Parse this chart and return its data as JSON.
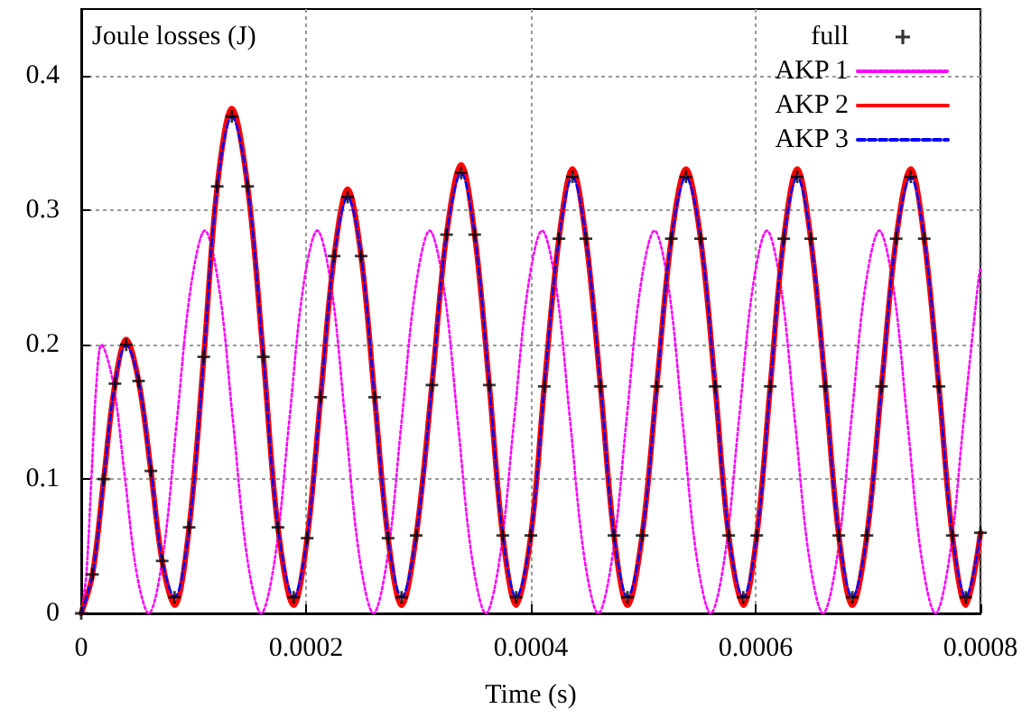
{
  "chart_data": {
    "type": "line",
    "ylabel": "Joule losses (J)",
    "xlabel": "Time (s)",
    "xlim": [
      0,
      0.0008
    ],
    "xticks": [
      0,
      0.0002,
      0.0004,
      0.0006,
      0.0008
    ],
    "ylim": [
      0,
      0.45
    ],
    "yticks": [
      0,
      0.1,
      0.2,
      0.3,
      0.4
    ],
    "grid": true,
    "legend": "top right",
    "x": [
      0,
      1e-05,
      2e-05,
      3e-05,
      4e-05,
      5.1e-05,
      6.2e-05,
      7.2e-05,
      8.3e-05,
      9.6e-05,
      0.000109,
      0.000121,
      0.000134,
      0.000148,
      0.000162,
      0.000175,
      0.000189,
      0.000201,
      0.000213,
      0.000225,
      0.000237,
      0.000249,
      0.000261,
      0.000273,
      0.000285,
      0.000298,
      0.000312,
      0.000325,
      0.000338,
      0.00035,
      0.000363,
      0.000375,
      0.000387,
      0.0004,
      0.000412,
      0.000425,
      0.000437,
      0.000449,
      0.000462,
      0.000474,
      0.000486,
      0.000499,
      0.000512,
      0.000525,
      0.000538,
      0.000551,
      0.000564,
      0.000576,
      0.000589,
      0.000601,
      0.000613,
      0.000625,
      0.000637,
      0.000649,
      0.000662,
      0.000674,
      0.000686,
      0.000699,
      0.000712,
      0.000725,
      0.000738,
      0.00075,
      0.000763,
      0.000775,
      0.000787,
      0.0008
    ],
    "series": [
      {
        "name": "full",
        "type": "scatter",
        "marker": "cross",
        "color": "#000000",
        "values": [
          0,
          0.029,
          0.1,
          0.171,
          0.2,
          0.173,
          0.106,
          0.039,
          0.012,
          0.064,
          0.191,
          0.318,
          0.37,
          0.318,
          0.191,
          0.064,
          0.012,
          0.056,
          0.161,
          0.266,
          0.31,
          0.266,
          0.161,
          0.056,
          0.012,
          0.058,
          0.17,
          0.282,
          0.328,
          0.282,
          0.17,
          0.058,
          0.012,
          0.058,
          0.169,
          0.279,
          0.325,
          0.279,
          0.169,
          0.058,
          0.012,
          0.058,
          0.169,
          0.279,
          0.325,
          0.279,
          0.169,
          0.058,
          0.012,
          0.058,
          0.169,
          0.279,
          0.325,
          0.279,
          0.169,
          0.058,
          0.012,
          0.058,
          0.169,
          0.279,
          0.325,
          0.279,
          0.169,
          0.058,
          0.012,
          0.06
        ]
      },
      {
        "name": "AKP 1",
        "line_style": "dotted",
        "color": "#ff00ff",
        "x": [
          0,
          4.5e-06,
          9e-06,
          1.35e-05,
          1.8e-05,
          2.85e-05,
          3.9e-05,
          4.95e-05,
          6e-05,
          7.25e-05,
          8.5e-05,
          9.75e-05,
          0.00011,
          0.0001225,
          0.000135,
          0.0001475,
          0.00016,
          0.0001725,
          0.000185,
          0.0001975,
          0.00021,
          0.0002225,
          0.000235,
          0.0002475,
          0.00026,
          0.0002725,
          0.000285,
          0.0002975,
          0.00031,
          0.0003225,
          0.000335,
          0.0003475,
          0.00036,
          0.0003725,
          0.000385,
          0.0003975,
          0.00041,
          0.0004225,
          0.000435,
          0.0004475,
          0.00046,
          0.0004725,
          0.000485,
          0.0004975,
          0.00051,
          0.0005225,
          0.000535,
          0.0005475,
          0.00056,
          0.0005725,
          0.000585,
          0.0005975,
          0.00061,
          0.0006225,
          0.000635,
          0.0006475,
          0.00066,
          0.0006725,
          0.000685,
          0.0006975,
          0.00071,
          0.0007225,
          0.000735,
          0.0007475,
          0.00076,
          0.0007725,
          0.000785,
          0.0007975,
          0.0008
        ],
        "values": [
          0,
          0.029,
          0.1,
          0.171,
          0.2,
          0.171,
          0.1,
          0.029,
          0,
          0.042,
          0.143,
          0.243,
          0.285,
          0.243,
          0.143,
          0.042,
          0,
          0.042,
          0.143,
          0.243,
          0.285,
          0.243,
          0.143,
          0.042,
          0,
          0.042,
          0.143,
          0.243,
          0.285,
          0.243,
          0.143,
          0.042,
          0,
          0.042,
          0.143,
          0.243,
          0.285,
          0.243,
          0.143,
          0.042,
          0,
          0.042,
          0.143,
          0.243,
          0.285,
          0.243,
          0.143,
          0.042,
          0,
          0.042,
          0.143,
          0.243,
          0.285,
          0.243,
          0.143,
          0.042,
          0,
          0.042,
          0.143,
          0.243,
          0.285,
          0.243,
          0.143,
          0.042,
          0,
          0.042,
          0.143,
          0.243,
          0.258
        ]
      },
      {
        "name": "AKP 2",
        "line_style": "solid",
        "color": "#ff0000",
        "values": [
          0,
          0.029,
          0.1,
          0.171,
          0.204,
          0.173,
          0.106,
          0.039,
          0.006,
          0.064,
          0.191,
          0.318,
          0.376,
          0.318,
          0.191,
          0.064,
          0.006,
          0.056,
          0.161,
          0.266,
          0.316,
          0.266,
          0.161,
          0.056,
          0.006,
          0.058,
          0.17,
          0.282,
          0.334,
          0.282,
          0.17,
          0.058,
          0.006,
          0.058,
          0.169,
          0.279,
          0.331,
          0.279,
          0.169,
          0.058,
          0.006,
          0.058,
          0.169,
          0.279,
          0.331,
          0.279,
          0.169,
          0.058,
          0.006,
          0.058,
          0.169,
          0.279,
          0.331,
          0.279,
          0.169,
          0.058,
          0.006,
          0.058,
          0.169,
          0.279,
          0.331,
          0.279,
          0.169,
          0.058,
          0.006,
          0.06
        ]
      },
      {
        "name": "AKP 3",
        "line_style": "dashed",
        "color": "#0000ff",
        "values": [
          0,
          0.029,
          0.1,
          0.171,
          0.2,
          0.173,
          0.106,
          0.039,
          0.012,
          0.064,
          0.191,
          0.318,
          0.37,
          0.318,
          0.191,
          0.064,
          0.012,
          0.056,
          0.161,
          0.266,
          0.31,
          0.266,
          0.161,
          0.056,
          0.012,
          0.058,
          0.17,
          0.282,
          0.328,
          0.282,
          0.17,
          0.058,
          0.012,
          0.058,
          0.169,
          0.279,
          0.325,
          0.279,
          0.169,
          0.058,
          0.012,
          0.058,
          0.169,
          0.279,
          0.325,
          0.279,
          0.169,
          0.058,
          0.012,
          0.058,
          0.169,
          0.279,
          0.325,
          0.279,
          0.169,
          0.058,
          0.012,
          0.058,
          0.169,
          0.279,
          0.325,
          0.279,
          0.169,
          0.058,
          0.012,
          0.06
        ]
      }
    ]
  }
}
